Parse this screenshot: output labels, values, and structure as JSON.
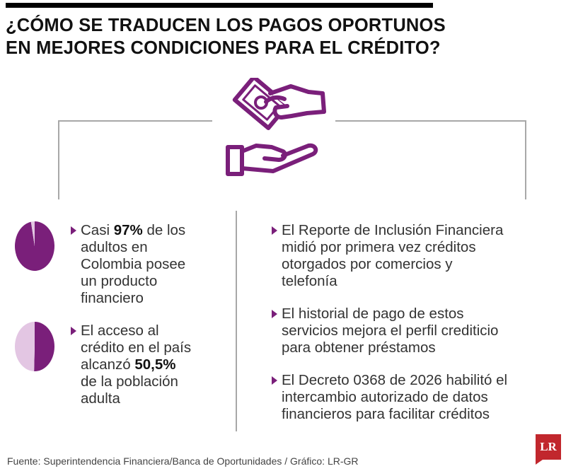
{
  "title": {
    "line1": "¿CÓMO SE TRADUCEN LOS PAGOS OPORTUNOS",
    "line2": "EN MEJORES CONDICIONES PARA EL CRÉDITO?"
  },
  "colors": {
    "accent": "#7a1f7a",
    "light": "#e3c6e3",
    "divider": "#a8a8a8",
    "logo": "#c1272d"
  },
  "icon": "hands-exchanging-money-icon",
  "chart_data": [
    {
      "type": "pie",
      "title": "",
      "slices": [
        {
          "label": "",
          "value": 97,
          "color": "#7a1f7a"
        },
        {
          "label": "",
          "value": 3,
          "color": "#e3c6e3"
        }
      ]
    },
    {
      "type": "pie",
      "title": "",
      "slices": [
        {
          "label": "",
          "value": 50.5,
          "color": "#7a1f7a"
        },
        {
          "label": "",
          "value": 49.5,
          "color": "#e3c6e3"
        }
      ]
    }
  ],
  "left": {
    "items": [
      {
        "pre": "Casi ",
        "bold": "97%",
        "post": " de los\nadultos en\nColombia posee\nun producto\nfinanciero"
      },
      {
        "pre": "El acceso al\ncrédito en el país\nalcanzó ",
        "bold": "50,5%",
        "post": "\nde la población\nadulta"
      }
    ]
  },
  "right": {
    "items": [
      "El Reporte de Inclusión Financiera\nmidió por primera vez créditos\notorgados por comercios y\ntelefonía",
      "El historial de pago de estos\nservicios mejora el perfil crediticio\npara obtener préstamos",
      "El Decreto 0368 de 2026 habilitó el\nintercambio autorizado de datos\nfinancieros para facilitar créditos"
    ]
  },
  "source": "Fuente: Superintendencia Financiera/Banca de Oportunidades / Gráfico: LR-GR",
  "logo": "LR"
}
